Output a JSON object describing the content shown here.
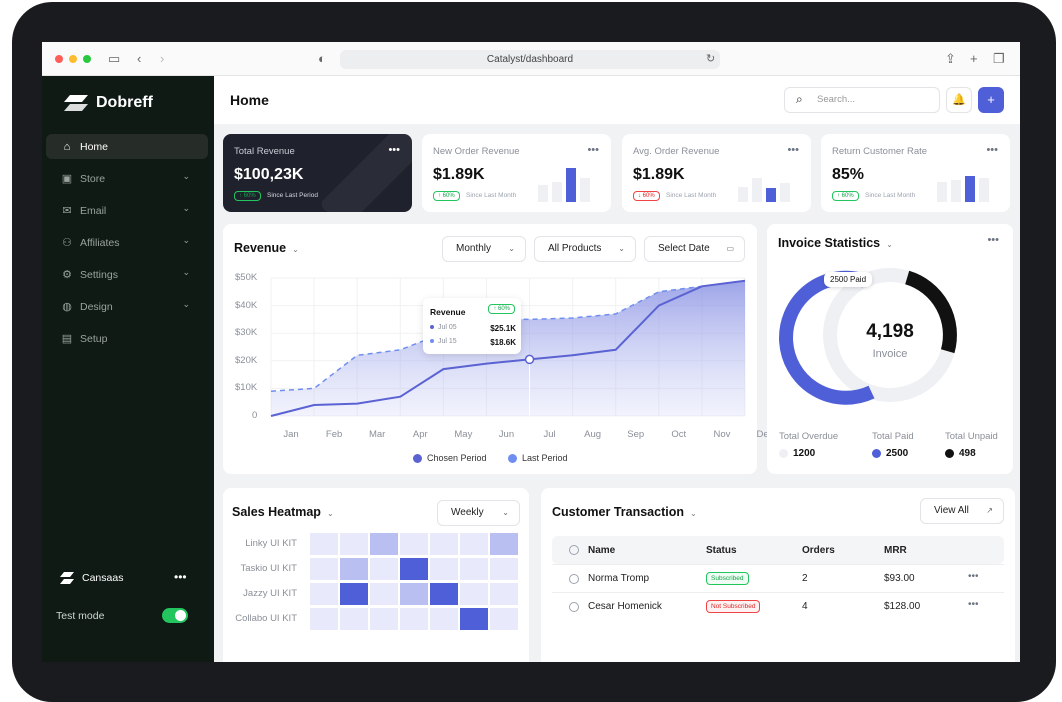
{
  "browser": {
    "url": "Catalyst/dashboard"
  },
  "sidebar": {
    "brand": "Dobreff",
    "items": [
      {
        "label": "Home",
        "icon": "home-icon",
        "active": true
      },
      {
        "label": "Store",
        "icon": "store-icon"
      },
      {
        "label": "Email",
        "icon": "mail-icon"
      },
      {
        "label": "Affiliates",
        "icon": "affiliates-icon"
      },
      {
        "label": "Settings",
        "icon": "gear-icon"
      },
      {
        "label": "Design",
        "icon": "palette-icon"
      },
      {
        "label": "Setup",
        "icon": "setup-icon"
      }
    ],
    "workspace": "Cansaas",
    "test_mode": "Test mode",
    "test_mode_on": true
  },
  "header": {
    "title": "Home",
    "search_placeholder": "Search..."
  },
  "stats": [
    {
      "label": "Total Revenue",
      "value": "$100,23K",
      "badge": "↑ 60%",
      "since": "Since Last Period",
      "dark": true
    },
    {
      "label": "New Order Revenue",
      "value": "$1.89K",
      "badge": "↑ 60%",
      "since": "Since Last Month"
    },
    {
      "label": "Avg. Order Revenue",
      "value": "$1.89K",
      "badge": "↓ 60%",
      "since": "Since Last Month",
      "negative": true
    },
    {
      "label": "Return Customer Rate",
      "value": "85%",
      "badge": "↑ 60%",
      "since": "Since Last Month"
    }
  ],
  "revenue": {
    "title": "Revenue",
    "period": "Monthly",
    "products": "All Products",
    "date": "Select Date",
    "tooltip": {
      "title": "Revenue",
      "badge": "↑ 60%",
      "row1_label": "Jul 05",
      "row1_value": "$25.1K",
      "row2_label": "Jul 15",
      "row2_value": "$18.6K"
    }
  },
  "chart_data": {
    "type": "area",
    "title": "Revenue",
    "x": [
      "Jan",
      "Feb",
      "Mar",
      "Apr",
      "May",
      "Jun",
      "Jul",
      "Aug",
      "Sep",
      "Oct",
      "Nov",
      "Dec"
    ],
    "y_ticks": [
      "$50K",
      "$40K",
      "$30K",
      "$20K",
      "$10K",
      "0"
    ],
    "ylim": [
      0,
      50000
    ],
    "legend": "bottom",
    "series": [
      {
        "name": "Chosen Period",
        "color": "#5b63d3",
        "values": [
          0,
          4000,
          4500,
          7000,
          17000,
          19000,
          20500,
          22000,
          24000,
          40000,
          47000,
          49000
        ]
      },
      {
        "name": "Last Period",
        "color": "#6f8ef0",
        "values": [
          9000,
          10000,
          22000,
          24000,
          30000,
          35500,
          35000,
          35500,
          37000,
          45000,
          47000,
          49000
        ]
      }
    ]
  },
  "invoice": {
    "title": "Invoice Statistics",
    "total": "4,198",
    "total_label": "Invoice",
    "paid_label": "2500 Paid",
    "totals": [
      {
        "label": "Total Overdue",
        "value": "1200",
        "color": "#eef0f4"
      },
      {
        "label": "Total Paid",
        "value": "2500",
        "color": "#4f5fd8"
      },
      {
        "label": "Total Unpaid",
        "value": "498",
        "color": "#111111"
      }
    ]
  },
  "heatmap": {
    "title": "Sales Heatmap",
    "period": "Weekly",
    "rows": [
      "Linky UI KIT",
      "Taskio UI KIT",
      "Jazzy UI KIT",
      "Collabo UI KIT"
    ],
    "levels": [
      [
        1,
        1,
        2,
        1,
        1,
        1,
        2
      ],
      [
        1,
        2,
        1,
        3,
        1,
        1,
        1
      ],
      [
        1,
        3,
        1,
        2,
        3,
        1,
        1
      ],
      [
        1,
        1,
        1,
        1,
        1,
        3,
        1
      ]
    ]
  },
  "transactions": {
    "title": "Customer Transaction",
    "view_all": "View All",
    "headers": [
      "Name",
      "Status",
      "Orders",
      "MRR"
    ],
    "rows": [
      {
        "name": "Norma Tromp",
        "status": "Subscribed",
        "orders": "2",
        "mrr": "$93.00",
        "negative": false
      },
      {
        "name": "Cesar Homenick",
        "status": "Not Subscribed",
        "orders": "4",
        "mrr": "$128.00",
        "negative": true
      }
    ]
  }
}
